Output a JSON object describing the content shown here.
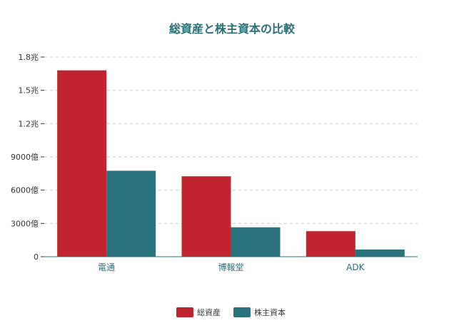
{
  "chart_data": {
    "type": "bar",
    "title": "総資産と株主資本の比較",
    "xlabel": "",
    "ylabel": "",
    "categories": [
      "電通",
      "博報堂",
      "ADK"
    ],
    "series": [
      {
        "name": "総資産",
        "values": [
          16800,
          7250,
          2300
        ],
        "color": "#c0242e"
      },
      {
        "name": "株主資本",
        "values": [
          7750,
          2650,
          650
        ],
        "color": "#2a737c"
      }
    ],
    "ylim": [
      0,
      18000
    ],
    "yticks": [
      {
        "value": 0,
        "label": "0"
      },
      {
        "value": 3000,
        "label": "3000億"
      },
      {
        "value": 6000,
        "label": "6000億"
      },
      {
        "value": 9000,
        "label": "9000億"
      },
      {
        "value": 12000,
        "label": "1.2兆"
      },
      {
        "value": 15000,
        "label": "1.5兆"
      },
      {
        "value": 18000,
        "label": "1.8兆"
      }
    ],
    "grid": true,
    "legend_position": "bottom"
  }
}
